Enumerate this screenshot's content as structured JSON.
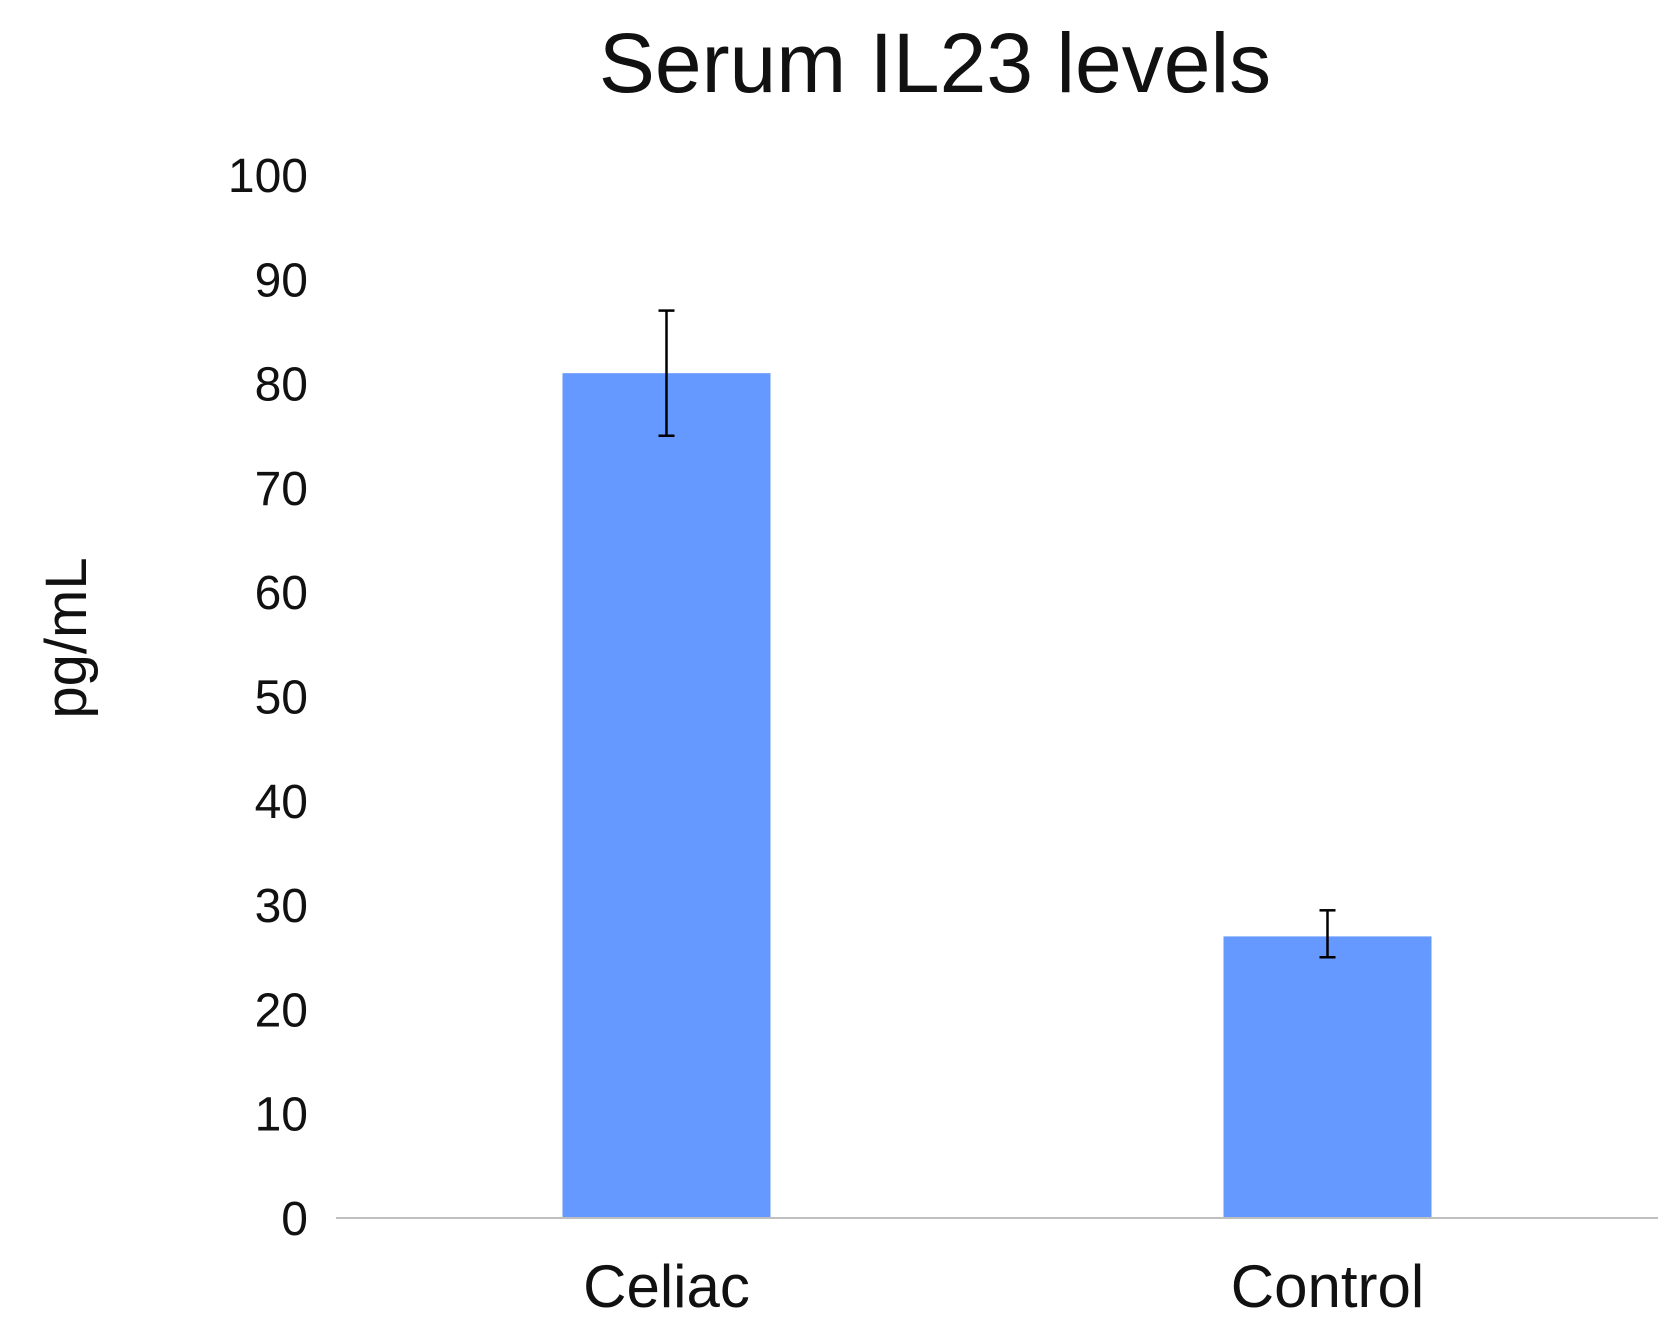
{
  "chart_data": {
    "type": "bar",
    "title": "Serum IL23 levels",
    "xlabel": "",
    "ylabel": "pg/mL",
    "categories": [
      "Celiac",
      "Control"
    ],
    "values": [
      81,
      27
    ],
    "error_bars": [
      {
        "low": 75,
        "high": 87
      },
      {
        "low": 25,
        "high": 29.5
      }
    ],
    "ylim": [
      0,
      100
    ],
    "yticks": [
      0,
      10,
      20,
      30,
      40,
      50,
      60,
      70,
      80,
      90,
      100
    ],
    "ytick_labels": [
      "0",
      "10",
      "20",
      "30",
      "40",
      "50",
      "60",
      "70",
      "80",
      "90",
      "100"
    ],
    "grid": false,
    "legend": "none",
    "colors": {
      "bar": "#6699FF",
      "axis": "#BFBFBF",
      "error_bar": "#000000",
      "text": "#111111"
    }
  }
}
